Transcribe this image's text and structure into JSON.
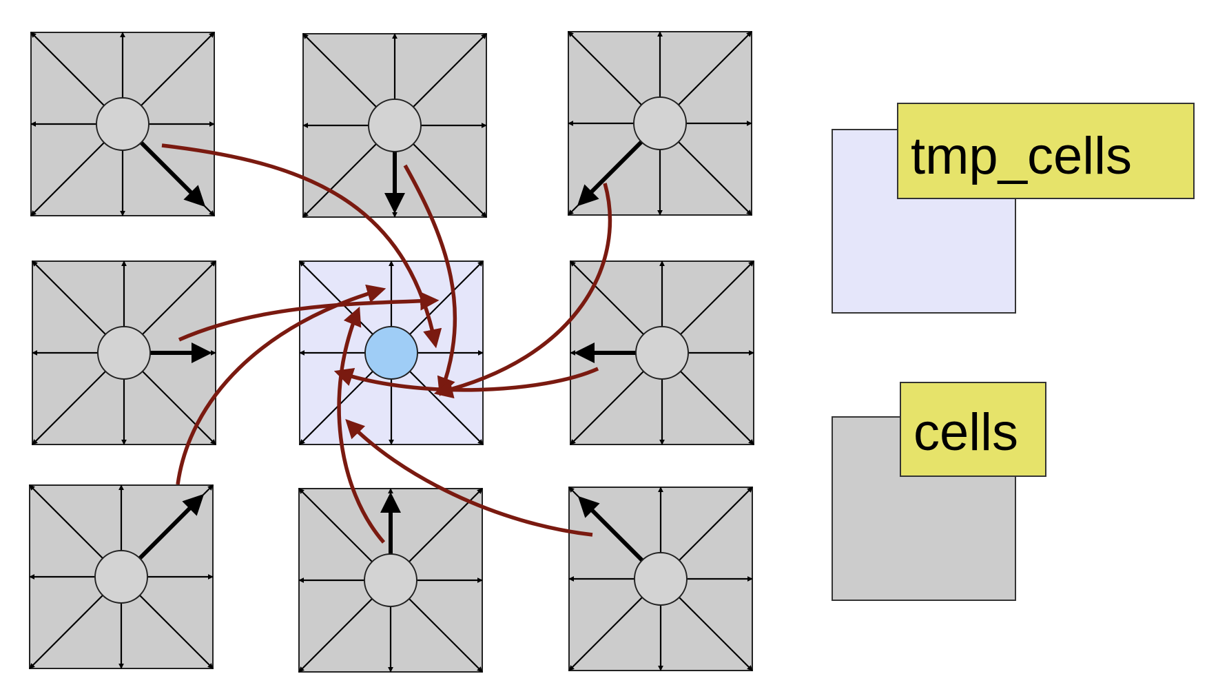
{
  "colors": {
    "cell_fill": "#cccccc",
    "target_cell_fill": "#e5e6fa",
    "node_fill": "#d3d3d3",
    "target_node_fill": "#9fcdf6",
    "flow_color": "#7a1a10",
    "label_fill": "#e6e36a"
  },
  "grid": {
    "rows": 3,
    "cols": 3,
    "directions": [
      "north-west",
      "north",
      "north-east",
      "west",
      "east",
      "south-west",
      "south",
      "south-east"
    ],
    "target_cell": "center",
    "streaming": [
      {
        "cell": "top-left",
        "highlighted_direction": "south-east"
      },
      {
        "cell": "top-center",
        "highlighted_direction": "south"
      },
      {
        "cell": "top-right",
        "highlighted_direction": "south-west"
      },
      {
        "cell": "middle-left",
        "highlighted_direction": "east"
      },
      {
        "cell": "middle-right",
        "highlighted_direction": "west"
      },
      {
        "cell": "bottom-left",
        "highlighted_direction": "north-east"
      },
      {
        "cell": "bottom-center",
        "highlighted_direction": "north"
      },
      {
        "cell": "bottom-right",
        "highlighted_direction": "north-west"
      }
    ]
  },
  "legend": {
    "tmp_cells": {
      "label": "tmp_cells",
      "box_color": "#e5e6fa"
    },
    "cells": {
      "label": "cells",
      "box_color": "#cccccc"
    }
  }
}
